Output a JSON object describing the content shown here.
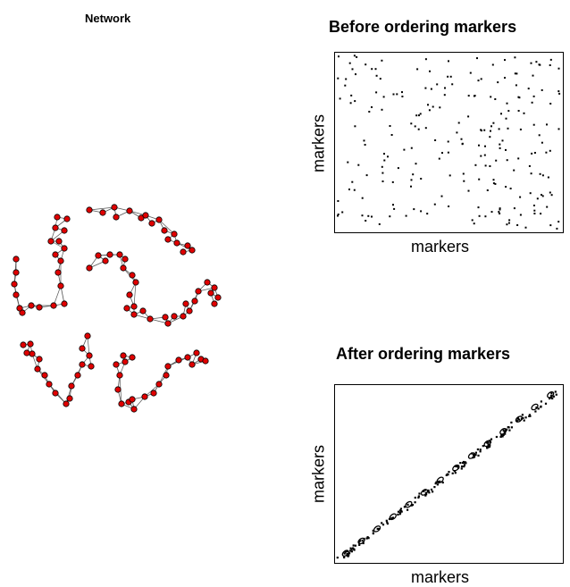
{
  "titles": {
    "network": "Network",
    "before": "Before ordering markers",
    "after": "After ordering markers"
  },
  "axes": {
    "x_label": "markers",
    "y_label": "markers"
  },
  "colors": {
    "node_fill": "#e00000",
    "node_stroke": "#000000",
    "edge": "#555555"
  }
}
